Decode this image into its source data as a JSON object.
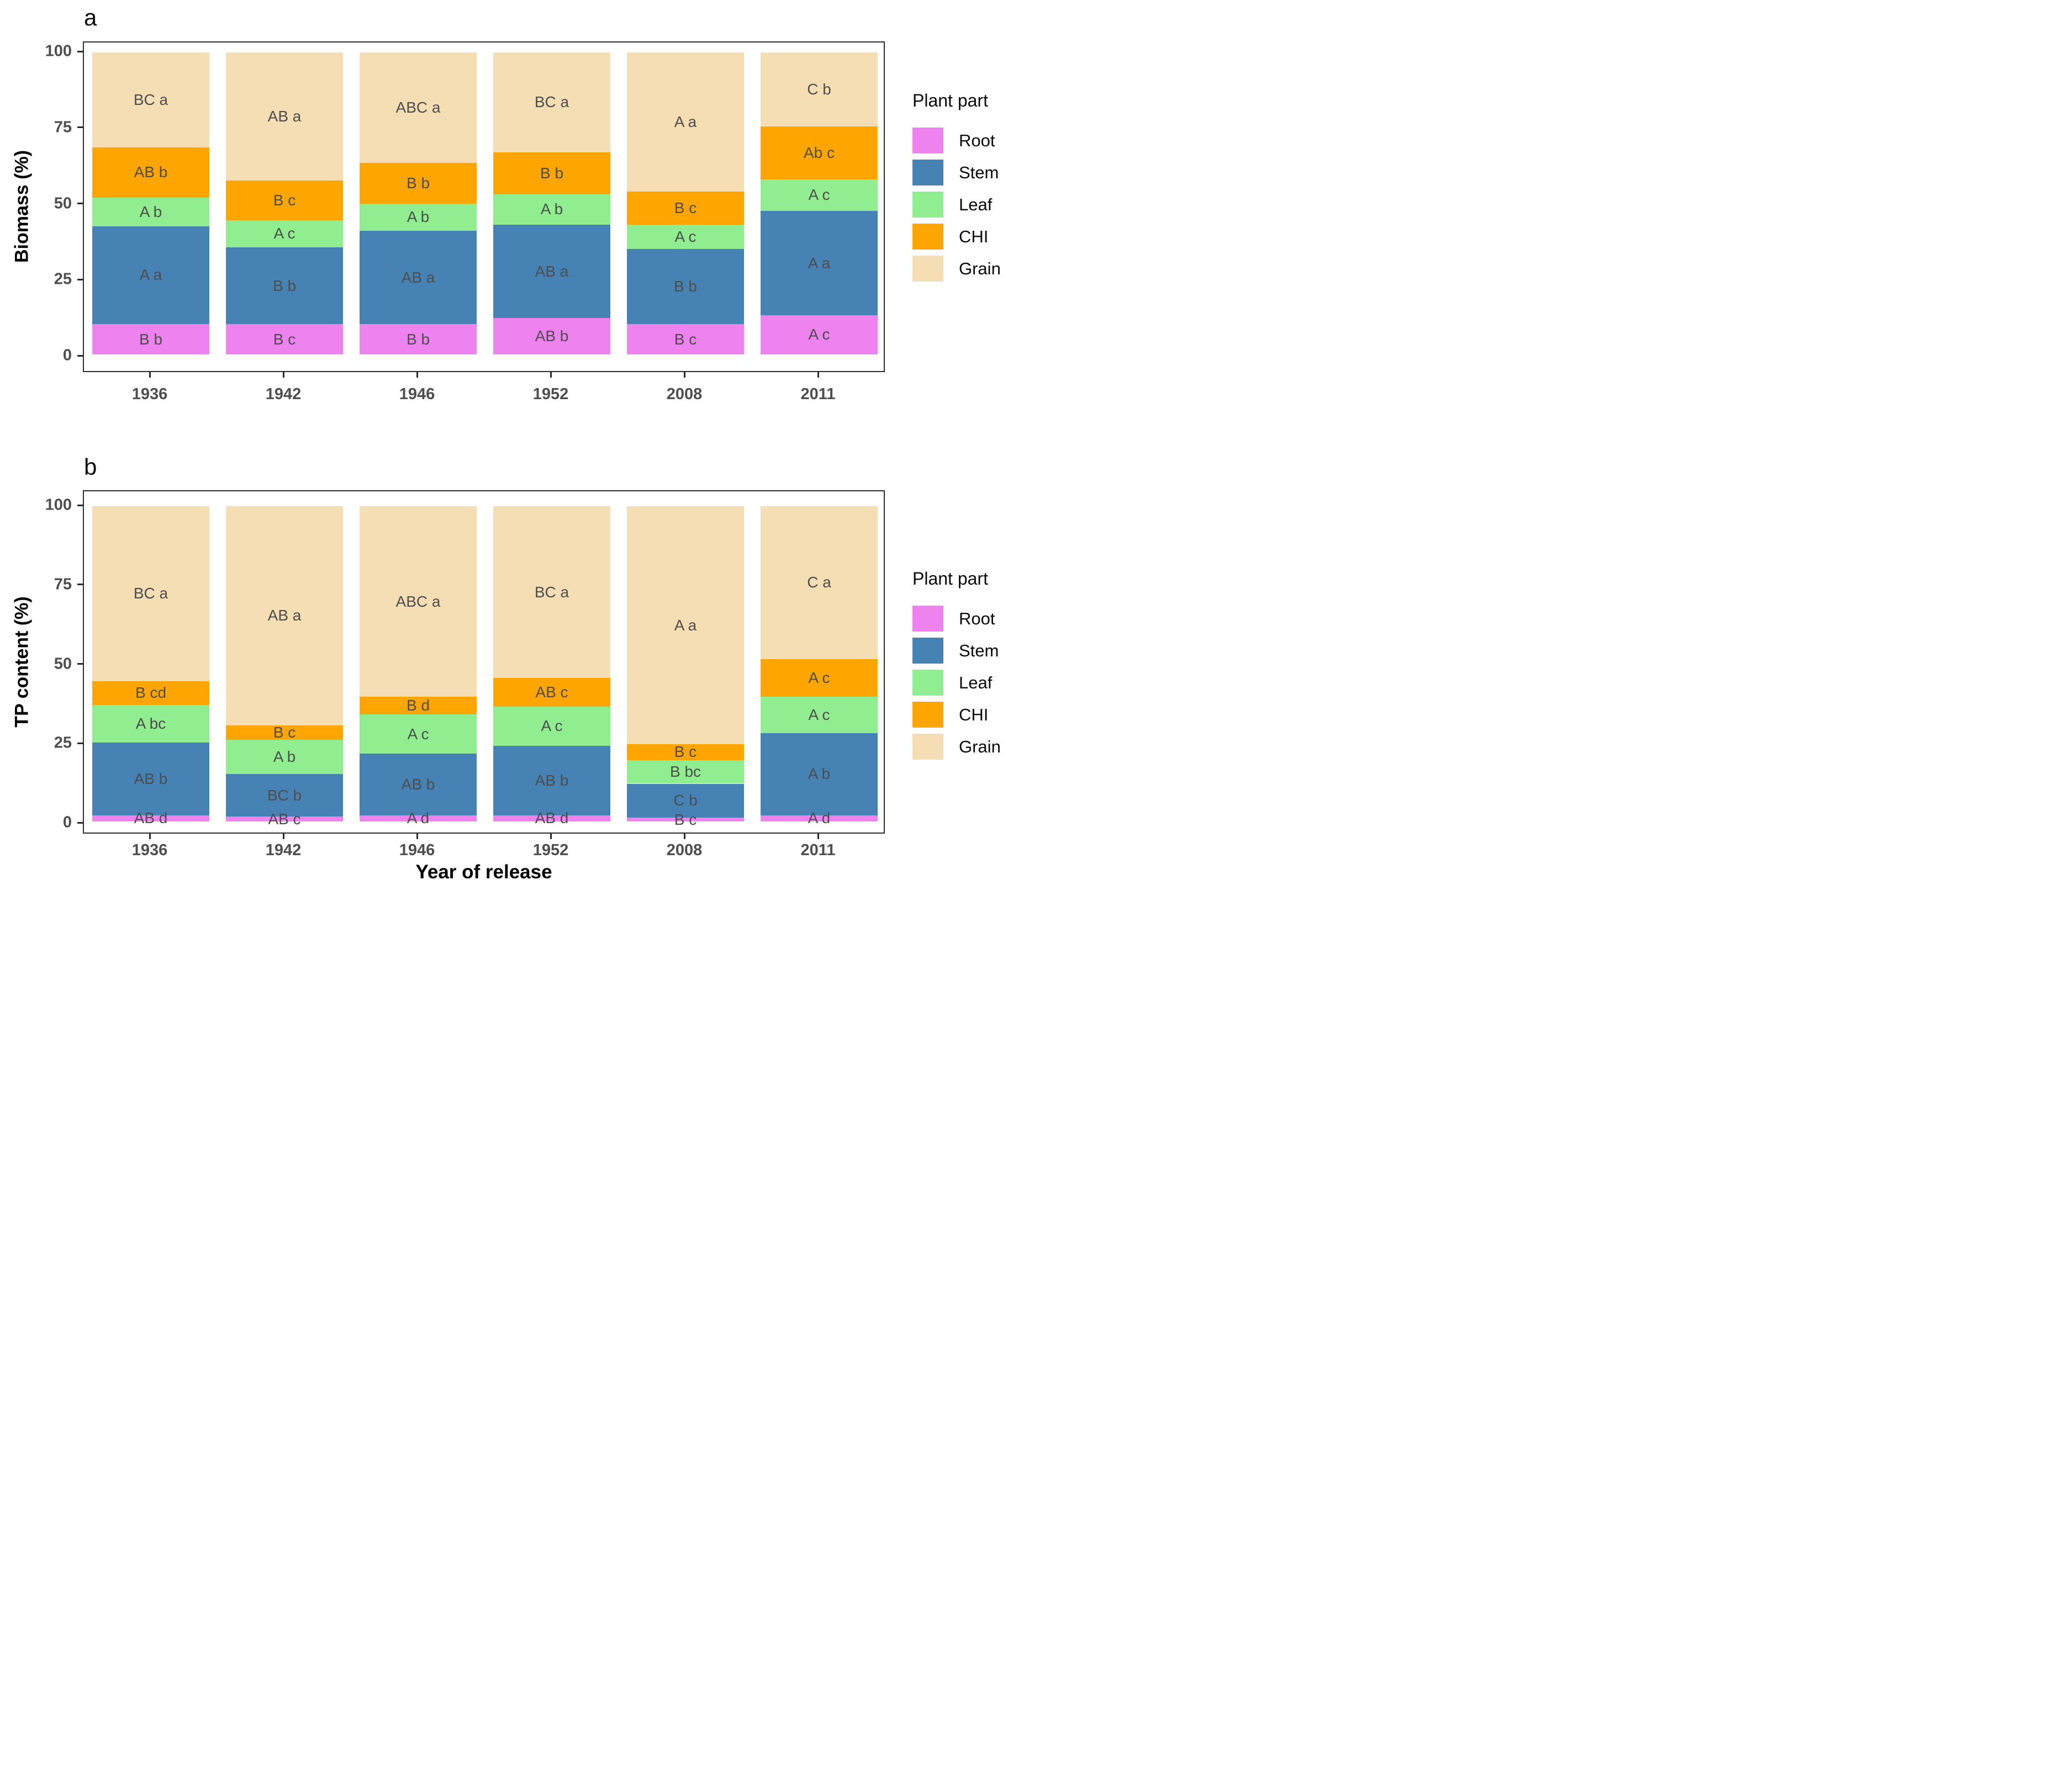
{
  "figure": {
    "background": "#ffffff",
    "text_color_axis": "#4d4d4d",
    "text_color_titles": "#000000"
  },
  "chart_data": [
    {
      "id": "a",
      "type": "bar",
      "subtype": "stacked-percent",
      "tag": "a",
      "title": "",
      "ylabel": "Biomass (%)",
      "xlabel": "",
      "ylim": [
        0,
        100
      ],
      "yticks": [
        0,
        25,
        50,
        75,
        100
      ],
      "grid": "off",
      "legend_position": "right",
      "legend_title": "Plant part",
      "categories": [
        "1936",
        "1942",
        "1946",
        "1952",
        "2008",
        "2011"
      ],
      "series": [
        {
          "name": "Root",
          "color": "#EE82EE",
          "values": [
            10,
            10,
            10,
            12,
            10,
            13
          ],
          "labels": [
            "B b",
            "B c",
            "B b",
            "AB b",
            "B c",
            "A c"
          ]
        },
        {
          "name": "Stem",
          "color": "#4682B4",
          "values": [
            32.5,
            25.5,
            31,
            31,
            25,
            34.5
          ],
          "labels": [
            "A a",
            "B b",
            "AB a",
            "AB a",
            "B b",
            "A a"
          ]
        },
        {
          "name": "Leaf",
          "color": "#90EE90",
          "values": [
            9.5,
            9,
            9,
            10,
            8,
            10.5
          ],
          "labels": [
            "A b",
            "A c",
            "A b",
            "A b",
            "A c",
            "A c"
          ]
        },
        {
          "name": "CHI",
          "color": "#FFA500",
          "values": [
            16.5,
            13,
            13.5,
            14,
            11,
            17.5
          ],
          "labels": [
            "AB b",
            "B c",
            "B b",
            "B b",
            "B c",
            "Ab c"
          ]
        },
        {
          "name": "Grain",
          "color": "#F5DEB3",
          "values": [
            31.5,
            42.5,
            36.5,
            33,
            46,
            24.5
          ],
          "labels": [
            "BC a",
            "AB a",
            "ABC a",
            "BC a",
            "A a",
            "C b"
          ]
        }
      ]
    },
    {
      "id": "b",
      "type": "bar",
      "subtype": "stacked-percent",
      "tag": "b",
      "title": "",
      "ylabel": "TP content (%)",
      "xlabel": "Year of release",
      "ylim": [
        0,
        100
      ],
      "yticks": [
        0,
        25,
        50,
        75,
        100
      ],
      "grid": "off",
      "legend_position": "right",
      "legend_title": "Plant part",
      "categories": [
        "1936",
        "1942",
        "1946",
        "1952",
        "2008",
        "2011"
      ],
      "series": [
        {
          "name": "Root",
          "color": "#EE82EE",
          "values": [
            2,
            1.5,
            2,
            2,
            1.2,
            2
          ],
          "labels": [
            "AB d",
            "AB c",
            "A d",
            "AB d",
            "B c",
            "A d"
          ]
        },
        {
          "name": "Stem",
          "color": "#4682B4",
          "values": [
            23,
            13.5,
            19.5,
            22,
            10.8,
            26
          ],
          "labels": [
            "AB b",
            "BC b",
            "AB b",
            "AB b",
            "C b",
            "A b"
          ]
        },
        {
          "name": "Leaf",
          "color": "#90EE90",
          "values": [
            12,
            11,
            12.5,
            12.5,
            7.5,
            11.5
          ],
          "labels": [
            "A bc",
            "A b",
            "A c",
            "A c",
            "B bc",
            "A c"
          ]
        },
        {
          "name": "CHI",
          "color": "#FFA500",
          "values": [
            7.5,
            4.5,
            5.5,
            9,
            5,
            12
          ],
          "labels": [
            "B cd",
            "B c",
            "B d",
            "AB c",
            "B c",
            "A c"
          ]
        },
        {
          "name": "Grain",
          "color": "#F5DEB3",
          "values": [
            55.5,
            69.5,
            60.5,
            54.5,
            75.5,
            48.5
          ],
          "labels": [
            "BC a",
            "AB a",
            "ABC a",
            "BC a",
            "A a",
            "C a"
          ]
        }
      ]
    }
  ]
}
